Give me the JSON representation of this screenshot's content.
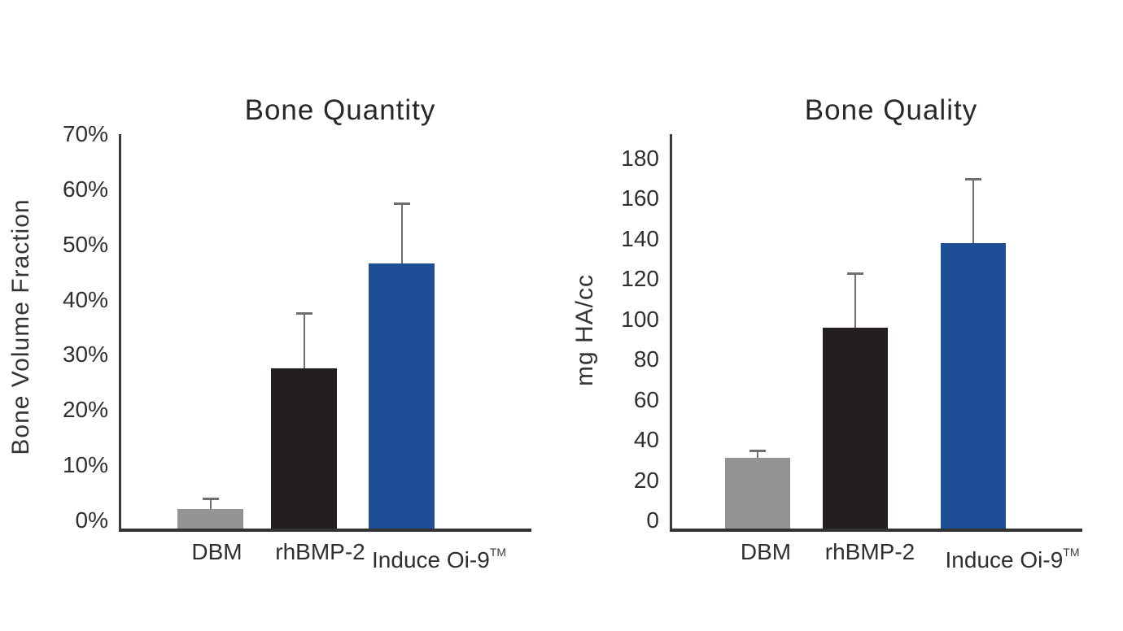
{
  "figure": {
    "background": "#ffffff",
    "colors": {
      "axis": "#3a3a3a",
      "error_bar": "#6f6f6f",
      "text": "#2d2d2d"
    }
  },
  "chart_data": [
    {
      "type": "bar",
      "title": "Bone Quantity",
      "xlabel": "",
      "ylabel": "Bone Volume Fraction",
      "categories": [
        "DBM",
        "rhBMP-2",
        "Induce Oi-9™"
      ],
      "values": [
        3.5,
        29,
        48
      ],
      "errors_plus": [
        2,
        10,
        11
      ],
      "ylim": [
        0,
        70
      ],
      "ytick_step": 10,
      "y_tick_labels": [
        "0%",
        "10%",
        "20%",
        "30%",
        "40%",
        "50%",
        "60%",
        "70%"
      ],
      "bar_colors": [
        "#949494",
        "#231f20",
        "#1e4e96"
      ],
      "grid": false,
      "legend": false
    },
    {
      "type": "bar",
      "title": "Bone Quality",
      "xlabel": "",
      "ylabel": "mg HA/cc",
      "categories": [
        "DBM",
        "rhBMP-2",
        "Induce Oi-9™"
      ],
      "values": [
        35,
        100,
        142
      ],
      "errors_plus": [
        4,
        27,
        32
      ],
      "ylim": [
        0,
        180
      ],
      "ytick_step": 20,
      "y_tick_labels": [
        "0",
        "20",
        "40",
        "60",
        "80",
        "100",
        "120",
        "140",
        "160",
        "180"
      ],
      "bar_colors": [
        "#949494",
        "#231f20",
        "#1e4e96"
      ],
      "grid": false,
      "legend": false
    }
  ]
}
